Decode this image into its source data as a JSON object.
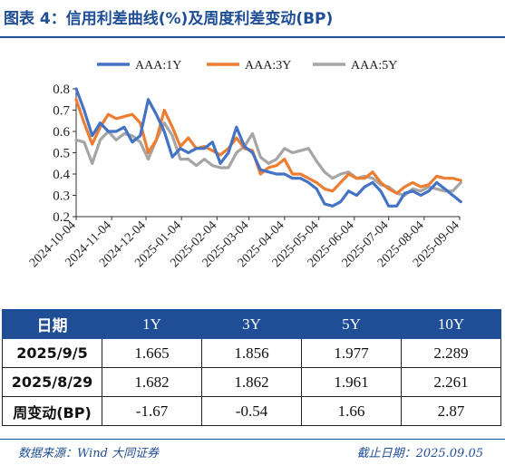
{
  "title": "图表 4：信用利差曲线(%)及周度利差变动(BP)",
  "colors": {
    "accent": "#1f4e96",
    "aaa_1y": "#4472c4",
    "aaa_3y": "#ed7d31",
    "aaa_5y": "#a5a5a5"
  },
  "chart_data": {
    "type": "line",
    "title": "",
    "xlabel": "",
    "ylabel": "",
    "ylim": [
      0.2,
      0.8
    ],
    "yticks": [
      "0.2",
      "0.3",
      "0.4",
      "0.5",
      "0.6",
      "0.7",
      "0.8"
    ],
    "grid": false,
    "legend_position": "top",
    "xticks": [
      "2024-10-04",
      "2024-11-04",
      "2024-12-04",
      "2025-01-04",
      "2025-02-04",
      "2025-03-04",
      "2025-04-04",
      "2025-05-04",
      "2025-06-04",
      "2025-07-04",
      "2025-08-04",
      "2025-09-04"
    ],
    "x": [
      "2024-10-04",
      "2024-10-11",
      "2024-10-18",
      "2024-10-25",
      "2024-11-01",
      "2024-11-08",
      "2024-11-15",
      "2024-11-22",
      "2024-11-29",
      "2024-12-06",
      "2024-12-13",
      "2024-12-20",
      "2024-12-27",
      "2025-01-03",
      "2025-01-10",
      "2025-01-17",
      "2025-01-24",
      "2025-01-31",
      "2025-02-07",
      "2025-02-14",
      "2025-02-21",
      "2025-02-28",
      "2025-03-07",
      "2025-03-14",
      "2025-03-21",
      "2025-03-28",
      "2025-04-04",
      "2025-04-11",
      "2025-04-18",
      "2025-04-25",
      "2025-05-02",
      "2025-05-09",
      "2025-05-16",
      "2025-05-23",
      "2025-05-30",
      "2025-06-06",
      "2025-06-13",
      "2025-06-20",
      "2025-06-27",
      "2025-07-04",
      "2025-07-11",
      "2025-07-18",
      "2025-07-25",
      "2025-08-01",
      "2025-08-08",
      "2025-08-15",
      "2025-08-22",
      "2025-08-29",
      "2025-09-05"
    ],
    "series": [
      {
        "name": "AAA:1Y",
        "color": "#4472c4",
        "values": [
          0.8,
          0.7,
          0.58,
          0.64,
          0.6,
          0.6,
          0.62,
          0.55,
          0.58,
          0.75,
          0.68,
          0.6,
          0.48,
          0.52,
          0.5,
          0.52,
          0.52,
          0.55,
          0.45,
          0.5,
          0.62,
          0.53,
          0.5,
          0.42,
          0.41,
          0.4,
          0.4,
          0.38,
          0.38,
          0.36,
          0.33,
          0.26,
          0.25,
          0.27,
          0.32,
          0.3,
          0.34,
          0.36,
          0.32,
          0.25,
          0.25,
          0.31,
          0.32,
          0.3,
          0.32,
          0.36,
          0.33,
          0.3,
          0.27
        ]
      },
      {
        "name": "AAA:3Y",
        "color": "#ed7d31",
        "values": [
          0.75,
          0.64,
          0.54,
          0.62,
          0.68,
          0.66,
          0.67,
          0.68,
          0.64,
          0.5,
          0.56,
          0.7,
          0.62,
          0.53,
          0.57,
          0.52,
          0.53,
          0.51,
          0.49,
          0.52,
          0.57,
          0.52,
          0.51,
          0.4,
          0.43,
          0.44,
          0.47,
          0.4,
          0.4,
          0.38,
          0.36,
          0.33,
          0.32,
          0.36,
          0.4,
          0.38,
          0.38,
          0.41,
          0.36,
          0.33,
          0.31,
          0.34,
          0.36,
          0.34,
          0.35,
          0.39,
          0.38,
          0.38,
          0.37
        ]
      },
      {
        "name": "AAA:5Y",
        "color": "#a5a5a5",
        "values": [
          0.56,
          0.55,
          0.45,
          0.56,
          0.6,
          0.56,
          0.59,
          0.58,
          0.55,
          0.47,
          0.56,
          0.64,
          0.58,
          0.47,
          0.47,
          0.44,
          0.47,
          0.44,
          0.43,
          0.43,
          0.5,
          0.53,
          0.59,
          0.48,
          0.45,
          0.47,
          0.52,
          0.5,
          0.51,
          0.52,
          0.46,
          0.41,
          0.38,
          0.4,
          0.41,
          0.38,
          0.39,
          0.38,
          0.35,
          0.34,
          0.31,
          0.3,
          0.33,
          0.32,
          0.34,
          0.33,
          0.32,
          0.32,
          0.36
        ]
      }
    ]
  },
  "table": {
    "headers": [
      "日期",
      "1Y",
      "3Y",
      "5Y",
      "10Y"
    ],
    "rows": [
      [
        "2025/9/5",
        "1.665",
        "1.856",
        "1.977",
        "2.289"
      ],
      [
        "2025/8/29",
        "1.682",
        "1.862",
        "1.961",
        "2.261"
      ],
      [
        "周变动(BP)",
        "-1.67",
        "-0.54",
        "1.66",
        "2.87"
      ]
    ]
  },
  "footer": {
    "source": "数据来源：Wind 大同证券",
    "cutoff": "截止日期：2025.09.05"
  }
}
